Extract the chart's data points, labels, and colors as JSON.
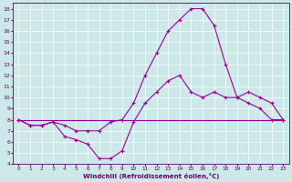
{
  "background_color": "#cce8e8",
  "grid_color": "#ffffff",
  "line_color": "#990099",
  "xlabel": "Windchill (Refroidissement éolien,°C)",
  "xlabel_color": "#660066",
  "tick_color": "#660066",
  "xlim": [
    -0.5,
    23.5
  ],
  "ylim": [
    4,
    18.5
  ],
  "xticks": [
    0,
    1,
    2,
    3,
    4,
    5,
    6,
    7,
    8,
    9,
    10,
    11,
    12,
    13,
    14,
    15,
    16,
    17,
    18,
    19,
    20,
    21,
    22,
    23
  ],
  "yticks": [
    4,
    5,
    6,
    7,
    8,
    9,
    10,
    11,
    12,
    13,
    14,
    15,
    16,
    17,
    18
  ],
  "line1_x": [
    0,
    1,
    2,
    3,
    4,
    5,
    6,
    7,
    8,
    9,
    10,
    11,
    12,
    13,
    14,
    15,
    16,
    17,
    18,
    19,
    20,
    21,
    22,
    23
  ],
  "line1_y": [
    8.0,
    7.5,
    7.5,
    7.8,
    6.5,
    6.2,
    5.8,
    4.5,
    4.5,
    5.2,
    7.8,
    9.5,
    10.5,
    11.5,
    12.0,
    10.5,
    10.0,
    10.5,
    10.0,
    10.0,
    10.5,
    10.0,
    9.5,
    8.0
  ],
  "line2_x": [
    0,
    1,
    2,
    3,
    4,
    5,
    6,
    7,
    8,
    9,
    10,
    11,
    12,
    13,
    14,
    15,
    16,
    17,
    18,
    19,
    20,
    21,
    22,
    23
  ],
  "line2_y": [
    8.0,
    7.5,
    7.5,
    7.8,
    7.5,
    7.0,
    7.0,
    7.0,
    7.8,
    8.0,
    9.5,
    12.0,
    14.0,
    16.0,
    17.0,
    18.0,
    18.0,
    16.5,
    13.0,
    10.0,
    9.5,
    9.0,
    8.0,
    8.0
  ],
  "line3_x": [
    0,
    23
  ],
  "line3_y": [
    8.0,
    8.0
  ]
}
